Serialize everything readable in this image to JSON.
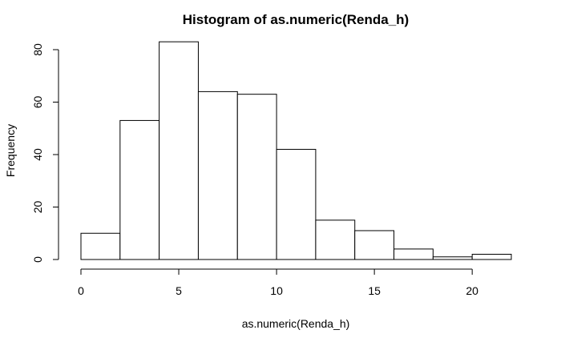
{
  "chart_data": {
    "type": "bar",
    "subtype": "histogram",
    "title": "Histogram of as.numeric(Renda_h)",
    "xlabel": "as.numeric(Renda_h)",
    "ylabel": "Frequency",
    "bins": [
      {
        "start": 0,
        "end": 2,
        "count": 10
      },
      {
        "start": 2,
        "end": 4,
        "count": 53
      },
      {
        "start": 4,
        "end": 6,
        "count": 83
      },
      {
        "start": 6,
        "end": 8,
        "count": 64
      },
      {
        "start": 8,
        "end": 10,
        "count": 63
      },
      {
        "start": 10,
        "end": 12,
        "count": 42
      },
      {
        "start": 12,
        "end": 14,
        "count": 15
      },
      {
        "start": 14,
        "end": 16,
        "count": 11
      },
      {
        "start": 16,
        "end": 18,
        "count": 4
      },
      {
        "start": 18,
        "end": 20,
        "count": 1
      },
      {
        "start": 20,
        "end": 22,
        "count": 2
      }
    ],
    "xlim": [
      0,
      22
    ],
    "ylim": [
      0,
      85
    ],
    "xticks": [
      0,
      5,
      10,
      15,
      20
    ],
    "yticks": [
      0,
      20,
      40,
      60,
      80
    ],
    "grid": false,
    "bar_fill": "#ffffff",
    "bar_stroke": "#000000"
  }
}
